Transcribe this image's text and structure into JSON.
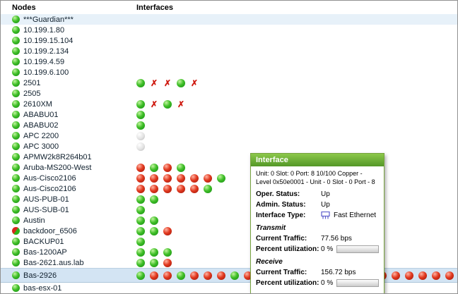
{
  "columns": {
    "nodes": "Nodes",
    "interfaces": "Interfaces"
  },
  "colors": {
    "status_up": "#2eb41c",
    "status_down": "#dc2a1a",
    "status_unknown": "#d8d8d8",
    "status_error_x": "#cf1a10",
    "selected_row": "#d3e4f3",
    "tooltip_header": "#6aae34"
  },
  "nodes": [
    {
      "name": "***Guardian***",
      "status": "up",
      "row_style": "tint",
      "interfaces": []
    },
    {
      "name": "10.199.1.80",
      "status": "up",
      "interfaces": []
    },
    {
      "name": "10.199.15.104",
      "status": "up",
      "interfaces": []
    },
    {
      "name": "10.199.2.134",
      "status": "up",
      "interfaces": []
    },
    {
      "name": "10.199.4.59",
      "status": "up",
      "interfaces": []
    },
    {
      "name": "10.199.6.100",
      "status": "up",
      "interfaces": []
    },
    {
      "name": "2501",
      "status": "up",
      "interfaces": [
        "up",
        "x",
        "x",
        "up",
        "x"
      ]
    },
    {
      "name": "2505",
      "status": "up",
      "interfaces": []
    },
    {
      "name": "2610XM",
      "status": "up",
      "interfaces": [
        "up",
        "x",
        "up",
        "x"
      ]
    },
    {
      "name": "ABABU01",
      "status": "up",
      "interfaces": [
        "up"
      ]
    },
    {
      "name": "ABABU02",
      "status": "up",
      "interfaces": [
        "up"
      ]
    },
    {
      "name": "APC 2200",
      "status": "up",
      "interfaces": [
        "unknown"
      ]
    },
    {
      "name": "APC 3000",
      "status": "up",
      "interfaces": [
        "unknown"
      ]
    },
    {
      "name": "APMW2k8R264b01",
      "status": "up",
      "interfaces": []
    },
    {
      "name": "Aruba-MS200-West",
      "status": "up",
      "interfaces": [
        "down",
        "up",
        "down",
        "up"
      ]
    },
    {
      "name": "Aus-Cisco2106",
      "status": "up",
      "interfaces": [
        "down",
        "down",
        "down",
        "down",
        "down",
        "down",
        "up"
      ]
    },
    {
      "name": "Aus-Cisco2106",
      "status": "up",
      "interfaces": [
        "down",
        "down",
        "down",
        "down",
        "down",
        "up"
      ]
    },
    {
      "name": "AUS-PUB-01",
      "status": "up",
      "interfaces": [
        "up",
        "up"
      ]
    },
    {
      "name": "AUS-SUB-01",
      "status": "up",
      "interfaces": [
        "up"
      ]
    },
    {
      "name": "Austin",
      "status": "up",
      "interfaces": [
        "up",
        "up"
      ]
    },
    {
      "name": "backdoor_6506",
      "status": "mixed",
      "interfaces": [
        "up",
        "up",
        "down"
      ]
    },
    {
      "name": "BACKUP01",
      "status": "up",
      "interfaces": [
        "up"
      ]
    },
    {
      "name": "Bas-1200AP",
      "status": "up",
      "interfaces": [
        "up",
        "up",
        "up"
      ]
    },
    {
      "name": "Bas-2621.aus.lab",
      "status": "up",
      "interfaces": [
        "up",
        "up",
        "down"
      ]
    },
    {
      "name": "Bas-2926",
      "status": "up",
      "row_style": "selected",
      "interfaces": [
        "up",
        "down",
        "down",
        "up",
        "down",
        "down",
        "down",
        "up",
        "down",
        "down",
        "down",
        "down",
        "down",
        "down",
        "down",
        "down",
        "down",
        "down",
        "down",
        "down",
        "down",
        "down",
        "down",
        "down"
      ]
    },
    {
      "name": "bas-esx-01",
      "status": "up",
      "interfaces": []
    }
  ],
  "tooltip": {
    "title": "Interface",
    "description": "Unit: 0 Slot: 0 Port: 8 10/100 Copper - Level 0x50e0001 - Unit - 0 Slot - 0 Port - 8",
    "oper_status_label": "Oper. Status:",
    "oper_status_value": "Up",
    "admin_status_label": "Admin. Status:",
    "admin_status_value": "Up",
    "interface_type_label": "Interface Type:",
    "interface_type_value": "Fast Ethernet",
    "transmit_section": "Transmit",
    "transmit_traffic_label": "Current Traffic:",
    "transmit_traffic_value": "77.56 bps",
    "transmit_util_label": "Percent utilization:",
    "transmit_util_value": "0 %",
    "receive_section": "Receive",
    "receive_traffic_label": "Current Traffic:",
    "receive_traffic_value": "156.72 bps",
    "receive_util_label": "Percent utilization:",
    "receive_util_value": "0 %"
  }
}
